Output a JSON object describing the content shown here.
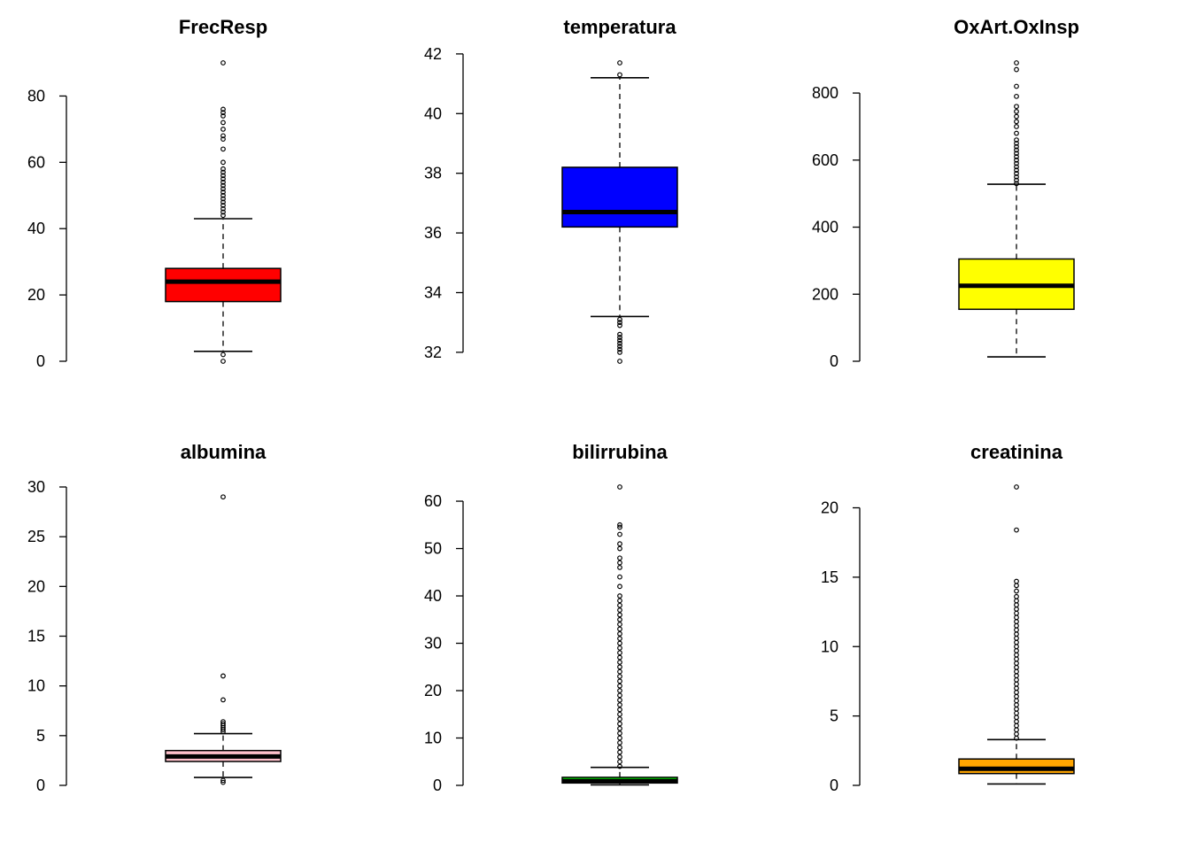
{
  "chart_data": [
    {
      "type": "boxplot",
      "title": "FrecResp",
      "fill": "#ff0000",
      "ylim": [
        0,
        90
      ],
      "ticks": [
        0,
        20,
        40,
        60,
        80
      ],
      "tick_labels": [
        "0",
        "20",
        "40",
        "60",
        "80"
      ],
      "box": {
        "whisker_low": 3,
        "q1": 18,
        "median": 24,
        "q3": 28,
        "whisker_high": 43
      },
      "outliers": [
        0,
        2,
        44,
        45,
        46,
        47,
        48,
        49,
        50,
        51,
        52,
        53,
        54,
        55,
        56,
        57,
        58,
        60,
        64,
        67,
        68,
        70,
        72,
        74,
        75,
        76,
        90
      ]
    },
    {
      "type": "boxplot",
      "title": "temperatura",
      "fill": "#0000ff",
      "ylim": [
        31.7,
        41.7
      ],
      "ticks": [
        32,
        34,
        36,
        38,
        40,
        42
      ],
      "tick_labels": [
        "32",
        "34",
        "36",
        "38",
        "40",
        "42"
      ],
      "box": {
        "whisker_low": 33.2,
        "q1": 36.2,
        "median": 36.7,
        "q3": 38.2,
        "whisker_high": 41.2
      },
      "outliers": [
        31.7,
        32.0,
        32.1,
        32.2,
        32.3,
        32.4,
        32.5,
        32.6,
        32.9,
        33.0,
        33.1,
        41.3,
        41.7
      ]
    },
    {
      "type": "boxplot",
      "title": "OxArt.OxInsp",
      "fill": "#ffff00",
      "ylim": [
        0,
        890
      ],
      "ticks": [
        0,
        200,
        400,
        600,
        800
      ],
      "tick_labels": [
        "0",
        "200",
        "400",
        "600",
        "800"
      ],
      "box": {
        "whisker_low": 13,
        "q1": 155,
        "median": 225,
        "q3": 305,
        "whisker_high": 528
      },
      "outliers": [
        530,
        540,
        550,
        560,
        570,
        580,
        590,
        600,
        610,
        620,
        630,
        640,
        650,
        660,
        680,
        700,
        715,
        730,
        745,
        760,
        790,
        820,
        870,
        890
      ]
    },
    {
      "type": "boxplot",
      "title": "albumina",
      "fill": "#ffc0cb",
      "ylim": [
        0,
        30
      ],
      "ticks": [
        0,
        5,
        10,
        15,
        20,
        25,
        30
      ],
      "tick_labels": [
        "0",
        "5",
        "10",
        "15",
        "20",
        "25",
        "30"
      ],
      "box": {
        "whisker_low": 0.8,
        "q1": 2.4,
        "median": 2.9,
        "q3": 3.5,
        "whisker_high": 5.2
      },
      "outliers": [
        0.3,
        0.5,
        5.4,
        5.6,
        5.8,
        6.0,
        6.2,
        6.4,
        8.6,
        11.0,
        29.0
      ]
    },
    {
      "type": "boxplot",
      "title": "bilirrubina",
      "fill": "#00ff00",
      "ylim": [
        0,
        63
      ],
      "ticks": [
        0,
        10,
        20,
        30,
        40,
        50,
        60
      ],
      "tick_labels": [
        "0",
        "10",
        "20",
        "30",
        "40",
        "50",
        "60"
      ],
      "box": {
        "whisker_low": 0.1,
        "q1": 0.5,
        "median": 0.9,
        "q3": 1.7,
        "whisker_high": 3.8
      },
      "outliers": [
        4,
        5,
        6,
        7,
        8,
        9,
        10,
        11,
        12,
        13,
        14,
        15,
        16,
        17,
        18,
        19,
        20,
        21,
        22,
        23,
        24,
        25,
        26,
        27,
        28,
        29,
        30,
        31,
        32,
        33,
        34,
        35,
        36,
        37,
        38,
        39,
        40,
        42,
        44,
        46,
        47,
        48,
        50,
        51,
        53,
        54.5,
        55,
        63
      ]
    },
    {
      "type": "boxplot",
      "title": "creatinina",
      "fill": "#ffa500",
      "ylim": [
        0,
        21.5
      ],
      "ticks": [
        0,
        5,
        10,
        15,
        20
      ],
      "tick_labels": [
        "0",
        "5",
        "10",
        "15",
        "20"
      ],
      "box": {
        "whisker_low": 0.1,
        "q1": 0.85,
        "median": 1.2,
        "q3": 1.9,
        "whisker_high": 3.3
      },
      "outliers": [
        3.4,
        3.7,
        4.0,
        4.3,
        4.6,
        4.9,
        5.2,
        5.5,
        5.8,
        6.1,
        6.4,
        6.7,
        7.0,
        7.3,
        7.6,
        7.9,
        8.2,
        8.5,
        8.8,
        9.1,
        9.4,
        9.7,
        10.0,
        10.3,
        10.6,
        10.9,
        11.2,
        11.5,
        11.8,
        12.1,
        12.4,
        12.7,
        13.0,
        13.3,
        13.6,
        14.0,
        14.4,
        14.7,
        18.4,
        21.5
      ]
    }
  ]
}
